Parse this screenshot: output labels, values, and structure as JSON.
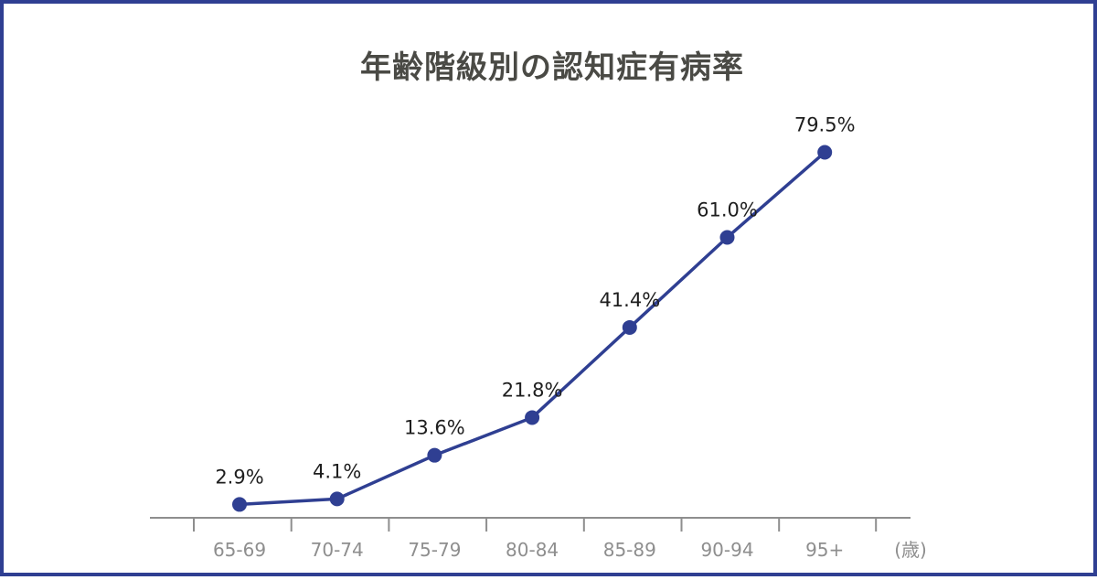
{
  "chart_data": {
    "type": "line",
    "title": "年齢階級別の認知症有病率",
    "categories": [
      "65-69",
      "70-74",
      "75-79",
      "80-84",
      "85-89",
      "90-94",
      "95+"
    ],
    "values": [
      2.9,
      4.1,
      13.6,
      21.8,
      41.4,
      61.0,
      79.5
    ],
    "value_labels": [
      "2.9%",
      "4.1%",
      "13.6%",
      "21.8%",
      "41.4%",
      "61.0%",
      "79.5%"
    ],
    "xunit": "(歳)",
    "ylim": [
      0,
      80
    ],
    "grid": false,
    "legend": "none",
    "colors": {
      "line": "#2f3f92",
      "marker": "#2f3f92",
      "axis": "#8e8e8e",
      "frame": "#2f3f92",
      "title": "#4a4a45"
    }
  }
}
